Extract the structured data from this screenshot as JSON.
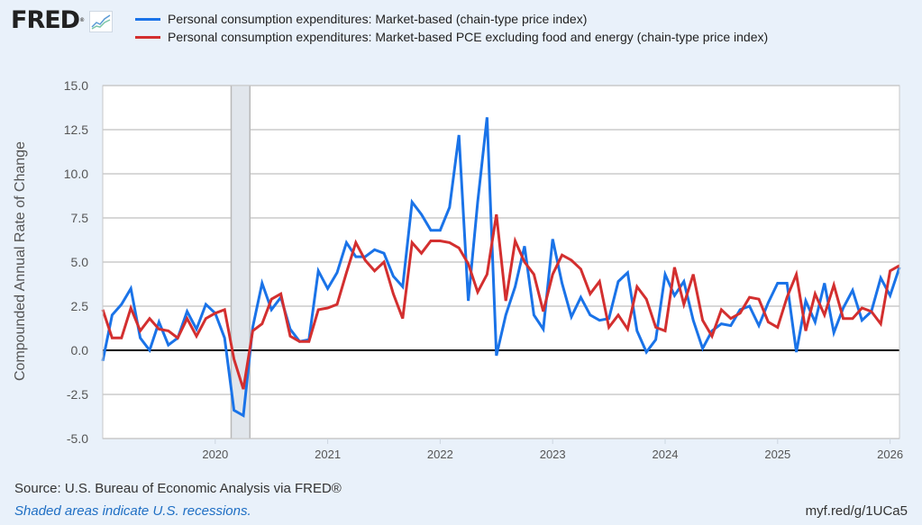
{
  "header": {
    "logo_text": "FRED",
    "logo_reg": "®",
    "logo_icon": "line-chart-icon"
  },
  "legend": [
    {
      "label": "Personal consumption expenditures: Market-based (chain-type price index)",
      "color": "#1a73e8"
    },
    {
      "label": "Personal consumption expenditures: Market-based PCE excluding food and energy (chain-type price index)",
      "color": "#d32f2f"
    }
  ],
  "footer": {
    "source": "Source: U.S. Bureau of Economic Analysis via FRED®",
    "recession_note": "Shaded areas indicate U.S. recessions.",
    "short_link": "myf.red/g/1UCa5"
  },
  "chart_data": {
    "type": "line",
    "title": "",
    "xlabel": "",
    "ylabel": "Compounded Annual Rate of Change",
    "ylim": [
      -5.0,
      15.0
    ],
    "yticks": [
      "15.0",
      "12.5",
      "10.0",
      "7.5",
      "5.0",
      "2.5",
      "0.0",
      "-2.5",
      "-5.0"
    ],
    "ytick_values": [
      15.0,
      12.5,
      10.0,
      7.5,
      5.0,
      2.5,
      0.0,
      -2.5,
      -5.0
    ],
    "xticks": [
      "2020",
      "2021",
      "2022",
      "2023",
      "2024",
      "2025",
      "2026"
    ],
    "x_start": "2019-01",
    "x_frequency": "monthly",
    "x_end": "2026-02",
    "grid": true,
    "zero_line": true,
    "recession": {
      "start": "2020-03",
      "end": "2020-04"
    },
    "legend_position": "top",
    "series": [
      {
        "name": "Personal consumption expenditures: Market-based (chain-type price index)",
        "color": "#1a73e8",
        "values": [
          -0.6,
          2.0,
          2.6,
          3.5,
          0.7,
          0.0,
          1.6,
          0.3,
          0.7,
          2.2,
          1.2,
          2.6,
          2.1,
          0.7,
          -3.4,
          -3.7,
          1.3,
          3.8,
          2.3,
          3.0,
          1.2,
          0.5,
          0.6,
          4.5,
          3.5,
          4.4,
          6.1,
          5.3,
          5.3,
          5.7,
          5.5,
          4.2,
          3.6,
          8.4,
          7.7,
          6.8,
          6.8,
          8.1,
          12.2,
          2.8,
          8.4,
          13.2,
          -0.3,
          2.0,
          3.6,
          5.9,
          2.0,
          1.2,
          6.3,
          3.8,
          1.9,
          3.0,
          2.0,
          1.7,
          1.8,
          3.9,
          4.4,
          1.1,
          -0.1,
          0.6,
          4.3,
          3.1,
          3.9,
          1.7,
          0.1,
          1.1,
          1.5,
          1.4,
          2.3,
          2.5,
          1.4,
          2.7,
          3.8,
          3.8,
          -0.1,
          2.8,
          1.6,
          3.8,
          1.0,
          2.4,
          3.4,
          1.7,
          2.2,
          4.1,
          3.1,
          4.7
        ]
      },
      {
        "name": "Personal consumption expenditures: Market-based PCE excluding food and energy (chain-type price index)",
        "color": "#d32f2f",
        "values": [
          2.3,
          0.7,
          0.7,
          2.4,
          1.1,
          1.8,
          1.2,
          1.1,
          0.7,
          1.8,
          0.8,
          1.8,
          2.1,
          2.3,
          -0.5,
          -2.2,
          1.1,
          1.5,
          2.9,
          3.2,
          0.8,
          0.5,
          0.5,
          2.3,
          2.4,
          2.6,
          4.4,
          6.1,
          5.1,
          4.5,
          5.0,
          3.2,
          1.8,
          6.1,
          5.5,
          6.2,
          6.2,
          6.1,
          5.8,
          4.9,
          3.3,
          4.3,
          7.7,
          2.8,
          6.2,
          5.0,
          4.3,
          2.2,
          4.3,
          5.4,
          5.1,
          4.6,
          3.2,
          3.9,
          1.3,
          2.0,
          1.2,
          3.6,
          2.9,
          1.3,
          1.1,
          4.7,
          2.6,
          4.3,
          1.7,
          0.8,
          2.3,
          1.8,
          2.1,
          3.0,
          2.9,
          1.6,
          1.3,
          3.0,
          4.3,
          1.1,
          3.2,
          2.0,
          3.7,
          1.8,
          1.8,
          2.4,
          2.2,
          1.5,
          4.5,
          4.8
        ]
      }
    ]
  }
}
